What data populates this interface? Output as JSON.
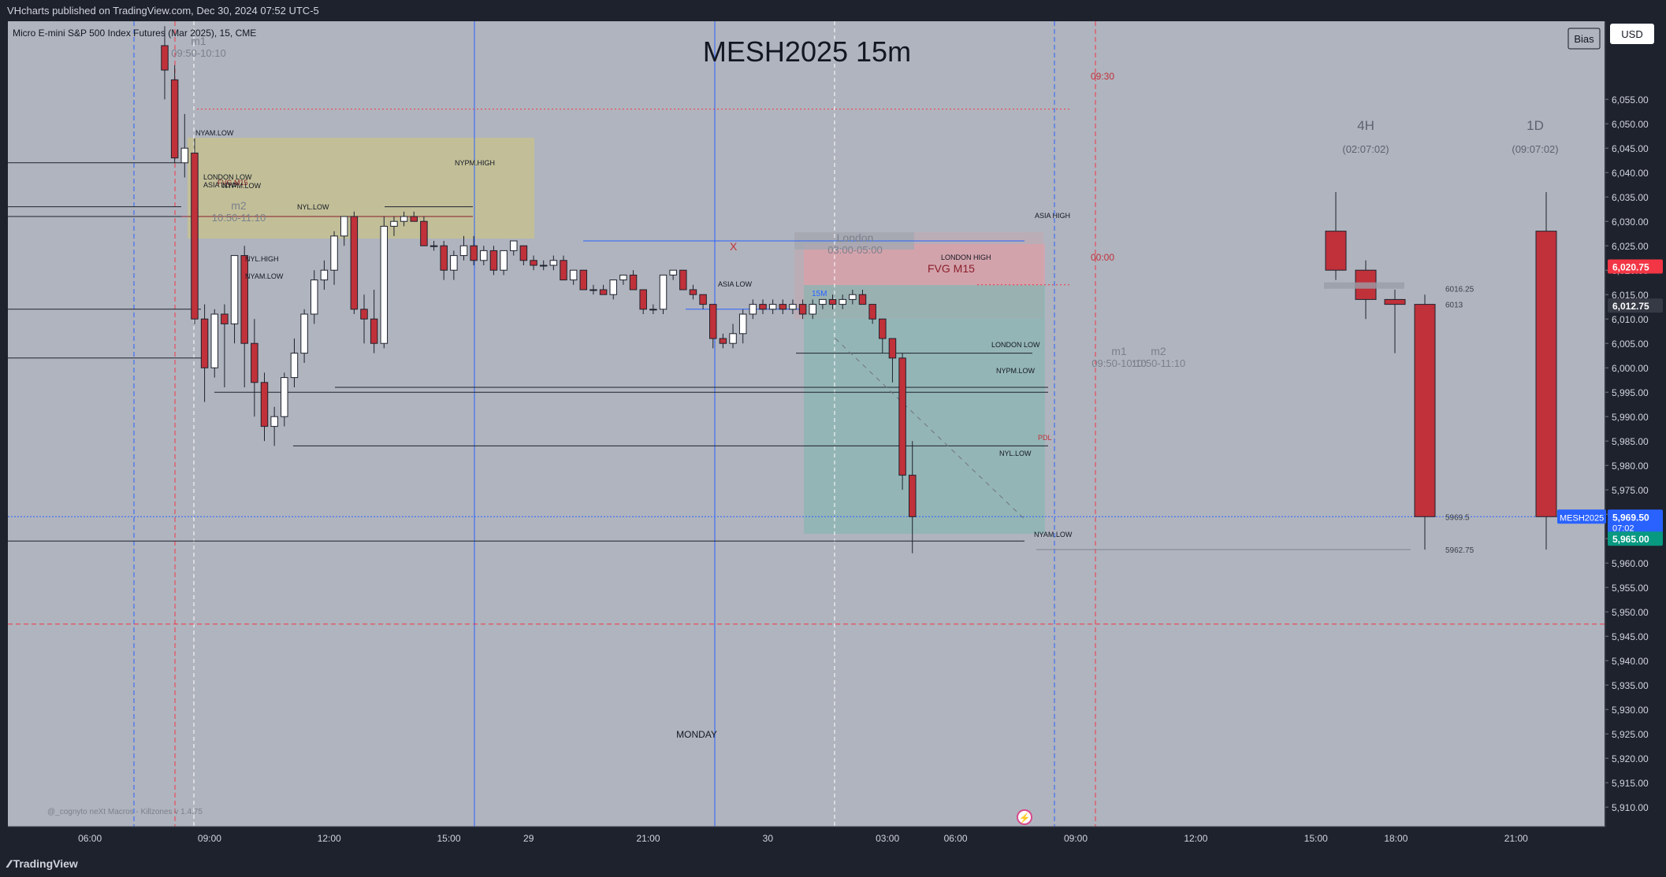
{
  "header": {
    "published_text": "VHcharts published on TradingView.com, Dec 30, 2024 07:52 UTC-5"
  },
  "footer": {
    "brand": "TradingView"
  },
  "chart_info": {
    "instrument_line": "Micro E-mini S&P 500 Index Futures (Mar 2025), 15, CME",
    "big_title": "MESH2025 15m",
    "currency_button": "USD",
    "bias_button": "Bias",
    "indicator_caption": "@_cognyto neXt Macros - Killzones v 1.4.75"
  },
  "colors": {
    "plot_bg": "#b0b4be",
    "up_candle": "#ffffff",
    "down_candle": "#c0313a",
    "axis_bg": "#1e222d",
    "axis_text": "#d1d4dc",
    "accent_blue": "#2962ff",
    "accent_red": "#f23645",
    "accent_green": "#089981"
  },
  "chart_data": {
    "type": "candlestick",
    "y_axis": {
      "min": 5906,
      "max": 6071,
      "ticks": [
        6055,
        6050,
        6045,
        6040,
        6035,
        6030,
        6025,
        6020,
        6015,
        6010,
        6005,
        6000,
        5995,
        5990,
        5985,
        5980,
        5975,
        5970,
        5965,
        5960,
        5955,
        5950,
        5945,
        5940,
        5935,
        5930,
        5925,
        5920,
        5915,
        5910
      ],
      "tick_labels": [
        "6,055.00",
        "6,050.00",
        "6,045.00",
        "6,040.00",
        "6,035.00",
        "6,030.00",
        "6,025.00",
        "6,020.00",
        "6,015.00",
        "6,010.00",
        "6,005.00",
        "6,000.00",
        "5,995.00",
        "5,990.00",
        "5,985.00",
        "5,980.00",
        "5,975.00",
        "5,970.00",
        "5,965.00",
        "5,960.00",
        "5,955.00",
        "5,950.00",
        "5,945.00",
        "5,940.00",
        "5,935.00",
        "5,930.00",
        "5,925.00",
        "5,920.00",
        "5,915.00",
        "5,910.00"
      ]
    },
    "x_axis": {
      "labels": [
        {
          "i": -7.5,
          "text": "06:00"
        },
        {
          "i": 4.5,
          "text": "09:00"
        },
        {
          "i": 16.5,
          "text": "12:00"
        },
        {
          "i": 28.5,
          "text": "15:00"
        },
        {
          "i": 36.5,
          "text": "29"
        },
        {
          "i": 48.5,
          "text": "21:00"
        },
        {
          "i": 60.5,
          "text": "30"
        },
        {
          "i": 72.5,
          "text": "03:00"
        },
        {
          "i": 84.5,
          "text": "06:00"
        },
        {
          "i": 96.5,
          "text": "09:00"
        },
        {
          "i": 108.5,
          "text": "12:00"
        },
        {
          "i": 120.5,
          "text": "15:00"
        },
        {
          "i": 128.5,
          "text": "18:00"
        },
        {
          "i": 140.5,
          "text": "21:00"
        }
      ]
    },
    "series": [
      {
        "name": "MESH2025",
        "ohlc": [
          [
            6066,
            6070,
            6055,
            6061
          ],
          [
            6059,
            6062,
            6042,
            6043
          ],
          [
            6042,
            6052,
            6039,
            6045
          ],
          [
            6044,
            6047,
            6009,
            6010
          ],
          [
            6010,
            6013,
            5993,
            6000
          ],
          [
            6000,
            6012,
            5998,
            6011
          ],
          [
            6011,
            6013,
            5996,
            6009
          ],
          [
            6009,
            6023,
            6005,
            6023
          ],
          [
            6023,
            6025,
            5996,
            6005
          ],
          [
            6005,
            6010,
            5990,
            5997
          ],
          [
            5997,
            5999,
            5985,
            5988
          ],
          [
            5988,
            5992,
            5984,
            5990
          ],
          [
            5990,
            5999,
            5988,
            5998
          ],
          [
            5998,
            6006,
            5996,
            6003
          ],
          [
            6003,
            6012,
            6001,
            6011
          ],
          [
            6011,
            6020,
            6009,
            6018
          ],
          [
            6018,
            6022,
            6016,
            6020
          ],
          [
            6020,
            6028,
            6017,
            6027
          ],
          [
            6027,
            6031,
            6025,
            6031
          ],
          [
            6031,
            6032,
            6011,
            6012
          ],
          [
            6012,
            6015,
            6005,
            6010
          ],
          [
            6010,
            6016,
            6003,
            6005
          ],
          [
            6005,
            6031,
            6004,
            6029
          ],
          [
            6029,
            6031,
            6027,
            6030
          ],
          [
            6030,
            6032,
            6029,
            6031
          ],
          [
            6031,
            6032,
            6030,
            6030
          ],
          [
            6030,
            6031,
            6025,
            6025
          ],
          [
            6025,
            6026,
            6024,
            6025
          ],
          [
            6025,
            6026,
            6018,
            6020
          ],
          [
            6020,
            6024,
            6018,
            6023
          ],
          [
            6023,
            6027,
            6022,
            6025
          ],
          [
            6025,
            6027,
            6021,
            6022
          ],
          [
            6022,
            6025,
            6021,
            6024
          ],
          [
            6024,
            6025,
            6019,
            6020
          ],
          [
            6020,
            6024,
            6019,
            6024
          ],
          [
            6024,
            6026,
            6023,
            6026
          ],
          [
            6025,
            6025,
            6021,
            6022
          ],
          [
            6022,
            6023,
            6020,
            6021
          ],
          [
            6021,
            6022,
            6020,
            6021
          ],
          [
            6021,
            6023,
            6020,
            6022
          ],
          [
            6022,
            6023,
            6018,
            6018
          ],
          [
            6018,
            6020,
            6017,
            6020
          ],
          [
            6020,
            6020,
            6016,
            6016
          ],
          [
            6016,
            6017,
            6015,
            6016
          ],
          [
            6016,
            6017,
            6015,
            6015
          ],
          [
            6015,
            6018,
            6014,
            6018
          ],
          [
            6018,
            6019,
            6017,
            6019
          ],
          [
            6019,
            6020,
            6016,
            6016
          ],
          [
            6016,
            6016,
            6011,
            6012
          ],
          [
            6012,
            6013,
            6011,
            6012
          ],
          [
            6012,
            6019,
            6011,
            6019
          ],
          [
            6019,
            6020,
            6018,
            6020
          ],
          [
            6020,
            6020,
            6016,
            6016
          ],
          [
            6016,
            6017,
            6014,
            6015
          ],
          [
            6015,
            6015,
            6012,
            6013
          ],
          [
            6013,
            6013,
            6004,
            6006
          ],
          [
            6006,
            6007,
            6004,
            6005
          ],
          [
            6005,
            6009,
            6004,
            6007
          ],
          [
            6007,
            6012,
            6005,
            6011
          ],
          [
            6011,
            6014,
            6010,
            6013
          ],
          [
            6013,
            6014,
            6011,
            6012
          ],
          [
            6012,
            6014,
            6011,
            6013
          ],
          [
            6013,
            6014,
            6011,
            6012
          ],
          [
            6012,
            6014,
            6011,
            6013
          ],
          [
            6013,
            6014,
            6010,
            6011
          ],
          [
            6011,
            6014,
            6010,
            6013
          ],
          [
            6013,
            6014,
            6012,
            6014
          ],
          [
            6014,
            6015,
            6012,
            6013
          ],
          [
            6013,
            6015,
            6012,
            6014
          ],
          [
            6014,
            6016,
            6013,
            6015
          ],
          [
            6015,
            6016,
            6013,
            6013
          ],
          [
            6013,
            6013,
            6009,
            6010
          ],
          [
            6010,
            6010,
            6003,
            6006
          ],
          [
            6006,
            6006,
            5997,
            6002
          ],
          [
            6002,
            6003,
            5975,
            5978
          ],
          [
            5978,
            5985,
            5962,
            5969.5
          ]
        ],
        "x_start_index": 0
      },
      {
        "name": "4H",
        "ohlc": [
          [
            6028,
            6036,
            6018,
            6020
          ],
          [
            6020,
            6022,
            6010,
            6014
          ],
          [
            6014,
            6016,
            6003,
            6013
          ],
          [
            6013,
            6015,
            5962.75,
            5969.5
          ]
        ]
      },
      {
        "name": "1D",
        "ohlc": [
          [
            6028,
            6036,
            5962.75,
            5969.5
          ]
        ]
      }
    ],
    "htf_panels": [
      {
        "title": "4H",
        "timer": "(02:07:02)",
        "levels": [
          {
            "value": "6016.25"
          },
          {
            "value": "6013"
          },
          {
            "value": "5969.5"
          },
          {
            "value": "5962.75"
          }
        ]
      },
      {
        "title": "1D",
        "timer": "(09:07:02)"
      }
    ],
    "price_badges": [
      {
        "price": 6020.75,
        "text": "6,020.75",
        "color": "#f23645"
      },
      {
        "price": 6012.75,
        "text": "6,012.75",
        "color": "#363a45"
      },
      {
        "price": 5969.5,
        "text": "5,969.50",
        "sub": "07:02",
        "color": "#2962ff",
        "name_tag": "MESH2025"
      },
      {
        "price": 5965.0,
        "text": "5,965.00",
        "color": "#089981"
      }
    ],
    "level_labels": [
      {
        "text": "NYAM.LOW",
        "price": 6042
      },
      {
        "text": "LONDON LOW",
        "price": 6033
      },
      {
        "text": "ASIA LOW",
        "price": 6031
      },
      {
        "text": "NYPM.HIGH",
        "price": 6033
      },
      {
        "text": "FVG M15",
        "price": 6031
      },
      {
        "text": "NYPM.LOW",
        "price": 6012
      },
      {
        "text": "NYL.LOW",
        "price": 6002
      },
      {
        "text": "NYL.HIGH",
        "price": 6002
      },
      {
        "text": "NYAM.LOW",
        "price": 5995
      },
      {
        "text": "ASIA HIGH",
        "price": 6026
      },
      {
        "text": "LONDON HIGH",
        "price": 6018
      },
      {
        "text": "FVG M15",
        "price": 6014
      },
      {
        "text": "ASIA LOW",
        "price": 6012
      },
      {
        "text": "LONDON LOW",
        "price": 6001
      },
      {
        "text": "NYPM.LOW",
        "price": 5995
      },
      {
        "text": "PDL",
        "price": 5984
      },
      {
        "text": "NYL.LOW",
        "price": 5978
      },
      {
        "text": "NYAM.LOW",
        "price": 5964
      },
      {
        "text": "09:30",
        "price": 6053
      },
      {
        "text": "00:00",
        "price": 6017
      },
      {
        "text": "MONDAY",
        "price": 5925
      },
      {
        "text": "X",
        "price": 6020
      },
      {
        "text": "15M",
        "price": 6011
      }
    ],
    "session_labels": [
      {
        "text": "m1",
        "sub": "09:50-10:10"
      },
      {
        "text": "m2",
        "sub": "10:50-11:10"
      },
      {
        "text": "London",
        "sub": "03:00-05:00"
      },
      {
        "text": "m1",
        "sub": "09:50-10:10"
      },
      {
        "text": "m2",
        "sub": "10:50-11:10"
      }
    ]
  }
}
